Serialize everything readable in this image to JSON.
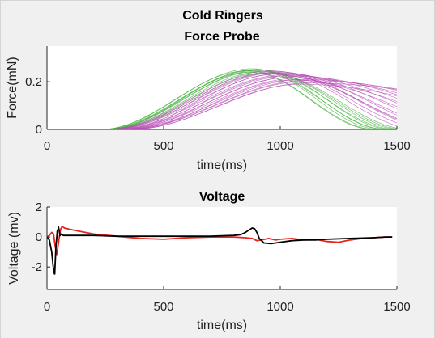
{
  "figure": {
    "suptitle": "Cold Ringers"
  },
  "chart_data": [
    {
      "type": "line",
      "title": "Force Probe",
      "xlabel": "time(ms)",
      "ylabel": "Force(mN)",
      "xlim": [
        0,
        1500
      ],
      "ylim": [
        0,
        0.35
      ],
      "xticks": [
        0,
        500,
        1000,
        1500
      ],
      "yticks": [
        0,
        0.2
      ],
      "ytick_labels": [
        "0",
        "0.2"
      ],
      "grid": false,
      "colors": {
        "green": "#3fae3a",
        "magenta": "#b64ab4"
      },
      "series": [
        {
          "color": "green",
          "onset": 230,
          "peak_t": 880,
          "peak": 0.255,
          "decay_end": 1430
        },
        {
          "color": "green",
          "onset": 235,
          "peak_t": 900,
          "peak": 0.252,
          "decay_end": 1450
        },
        {
          "color": "green",
          "onset": 240,
          "peak_t": 920,
          "peak": 0.25,
          "decay_end": 1480
        },
        {
          "color": "green",
          "onset": 245,
          "peak_t": 890,
          "peak": 0.248,
          "decay_end": 1460
        },
        {
          "color": "green",
          "onset": 250,
          "peak_t": 910,
          "peak": 0.245,
          "decay_end": 1500
        },
        {
          "color": "green",
          "onset": 255,
          "peak_t": 930,
          "peak": 0.243,
          "decay_end": 1520
        },
        {
          "color": "green",
          "onset": 260,
          "peak_t": 870,
          "peak": 0.24,
          "decay_end": 1400
        },
        {
          "color": "green",
          "onset": 228,
          "peak_t": 860,
          "peak": 0.246,
          "decay_end": 1410
        },
        {
          "color": "green",
          "onset": 265,
          "peak_t": 940,
          "peak": 0.238,
          "decay_end": 1540
        },
        {
          "color": "green",
          "onset": 270,
          "peak_t": 950,
          "peak": 0.235,
          "decay_end": 1560
        },
        {
          "color": "magenta",
          "onset": 250,
          "peak_t": 960,
          "peak": 0.246,
          "decay_end": 1650
        },
        {
          "color": "magenta",
          "onset": 255,
          "peak_t": 980,
          "peak": 0.243,
          "decay_end": 1700
        },
        {
          "color": "magenta",
          "onset": 260,
          "peak_t": 1000,
          "peak": 0.24,
          "decay_end": 1750
        },
        {
          "color": "magenta",
          "onset": 270,
          "peak_t": 1010,
          "peak": 0.236,
          "decay_end": 1850
        },
        {
          "color": "magenta",
          "onset": 280,
          "peak_t": 1030,
          "peak": 0.23,
          "decay_end": 1950
        },
        {
          "color": "magenta",
          "onset": 290,
          "peak_t": 1050,
          "peak": 0.226,
          "decay_end": 2050
        },
        {
          "color": "magenta",
          "onset": 300,
          "peak_t": 1070,
          "peak": 0.222,
          "decay_end": 2150
        },
        {
          "color": "magenta",
          "onset": 310,
          "peak_t": 1080,
          "peak": 0.215,
          "decay_end": 2250
        },
        {
          "color": "magenta",
          "onset": 320,
          "peak_t": 1100,
          "peak": 0.21,
          "decay_end": 2400
        },
        {
          "color": "magenta",
          "onset": 330,
          "peak_t": 1110,
          "peak": 0.205,
          "decay_end": 2550
        },
        {
          "color": "magenta",
          "onset": 340,
          "peak_t": 1100,
          "peak": 0.2,
          "decay_end": 2000
        },
        {
          "color": "magenta",
          "onset": 350,
          "peak_t": 1120,
          "peak": 0.195,
          "decay_end": 2700
        },
        {
          "color": "magenta",
          "onset": 300,
          "peak_t": 990,
          "peak": 0.232,
          "decay_end": 1600
        },
        {
          "color": "magenta",
          "onset": 310,
          "peak_t": 1020,
          "peak": 0.225,
          "decay_end": 1680
        },
        {
          "color": "magenta",
          "onset": 325,
          "peak_t": 1040,
          "peak": 0.218,
          "decay_end": 1780
        },
        {
          "color": "magenta",
          "onset": 345,
          "peak_t": 1060,
          "peak": 0.208,
          "decay_end": 1900
        },
        {
          "color": "magenta",
          "onset": 360,
          "peak_t": 1090,
          "peak": 0.19,
          "decay_end": 2300
        },
        {
          "color": "magenta",
          "onset": 280,
          "peak_t": 970,
          "peak": 0.238,
          "decay_end": 1720
        }
      ]
    },
    {
      "type": "line",
      "title": "Voltage",
      "xlabel": "time(ms)",
      "ylabel": "Voltage (mv)",
      "xlim": [
        0,
        1500
      ],
      "ylim": [
        -3.5,
        2
      ],
      "xticks": [
        0,
        500,
        1000,
        1500
      ],
      "yticks": [
        -2,
        0,
        2
      ],
      "grid": false,
      "colors": {
        "red": "#e8251d",
        "black": "#000000"
      },
      "series": [
        {
          "color": "red",
          "x": [
            0,
            10,
            20,
            28,
            35,
            42,
            50,
            58,
            65,
            75,
            100,
            150,
            200,
            300,
            400,
            500,
            600,
            700,
            800,
            850,
            880,
            900,
            920,
            950,
            980,
            1000,
            1050,
            1100,
            1150,
            1200,
            1250,
            1300,
            1350,
            1400,
            1450,
            1480
          ],
          "y": [
            0.0,
            0.1,
            0.3,
            0.2,
            -0.6,
            -1.2,
            -0.3,
            0.5,
            0.7,
            0.6,
            0.5,
            0.35,
            0.2,
            0.05,
            -0.1,
            -0.15,
            -0.05,
            0.0,
            0.0,
            -0.05,
            -0.1,
            -0.25,
            -0.2,
            -0.1,
            -0.2,
            -0.15,
            -0.1,
            -0.2,
            -0.15,
            -0.3,
            -0.35,
            -0.2,
            -0.1,
            -0.05,
            0.0,
            0.0
          ]
        },
        {
          "color": "black",
          "x": [
            0,
            10,
            20,
            28,
            33,
            38,
            44,
            50,
            56,
            62,
            70,
            80,
            100,
            200,
            300,
            400,
            500,
            600,
            700,
            750,
            800,
            830,
            850,
            870,
            880,
            890,
            900,
            910,
            930,
            960,
            1000,
            1050,
            1100,
            1150,
            1200,
            1300,
            1400,
            1450,
            1480
          ],
          "y": [
            0.0,
            -0.2,
            -1.0,
            -2.2,
            -2.5,
            -0.8,
            0.4,
            0.6,
            0.1,
            0.2,
            0.1,
            0.1,
            0.1,
            0.1,
            0.05,
            0.05,
            0.05,
            0.05,
            0.05,
            0.08,
            0.1,
            0.15,
            0.3,
            0.5,
            0.6,
            0.55,
            0.3,
            -0.1,
            -0.4,
            -0.45,
            -0.35,
            -0.25,
            -0.2,
            -0.2,
            -0.15,
            -0.1,
            -0.05,
            0.0,
            0.0
          ]
        }
      ]
    }
  ]
}
